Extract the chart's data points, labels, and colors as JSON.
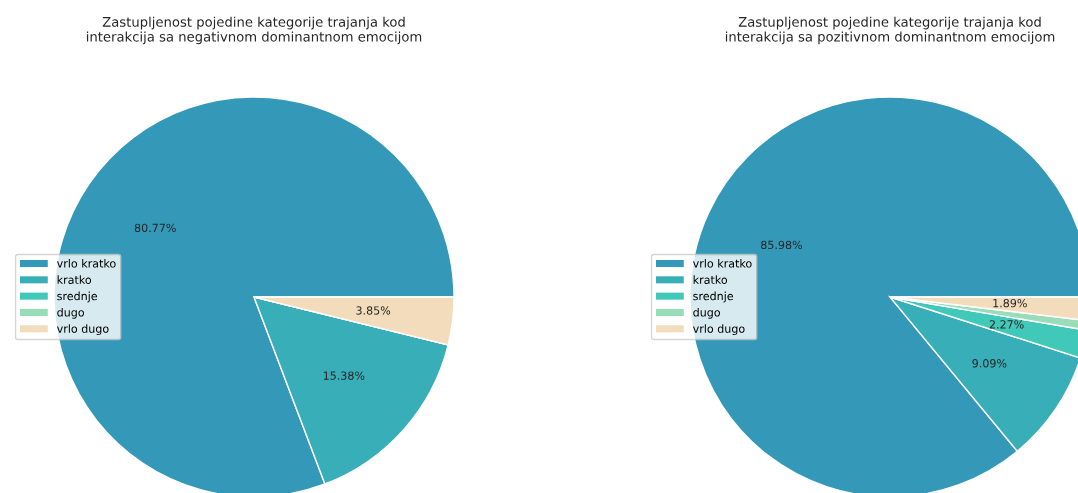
{
  "chart_data": [
    {
      "type": "pie",
      "title": "Zastupljenost pojedine kategorije trajanja kod\ninterakcija sa negativnom dominantnom emocijom",
      "categories": [
        "vrlo kratko",
        "kratko",
        "srednje",
        "dugo",
        "vrlo dugo"
      ],
      "values": [
        80.77,
        15.38,
        0,
        0,
        3.85
      ],
      "value_labels": [
        "80.77%",
        "15.38%",
        null,
        null,
        "3.85%"
      ],
      "colors": [
        "#3498b8",
        "#37aeb8",
        "#40c8b8",
        "#98dcb8",
        "#f2dcbc"
      ],
      "legend": "left"
    },
    {
      "type": "pie",
      "title": "Zastupljenost pojedine kategorije trajanja kod\ninterakcija sa pozitivnom dominantnom emocijom",
      "categories": [
        "vrlo kratko",
        "kratko",
        "srednje",
        "dugo",
        "vrlo dugo"
      ],
      "values": [
        85.98,
        9.09,
        2.27,
        0.77,
        1.89
      ],
      "value_labels": [
        "85.98%",
        "9.09%",
        "2.27%",
        null,
        "1.89%"
      ],
      "colors": [
        "#3498b8",
        "#37aeb8",
        "#40c8b8",
        "#98dcb8",
        "#f2dcbc"
      ],
      "legend": "left"
    }
  ]
}
